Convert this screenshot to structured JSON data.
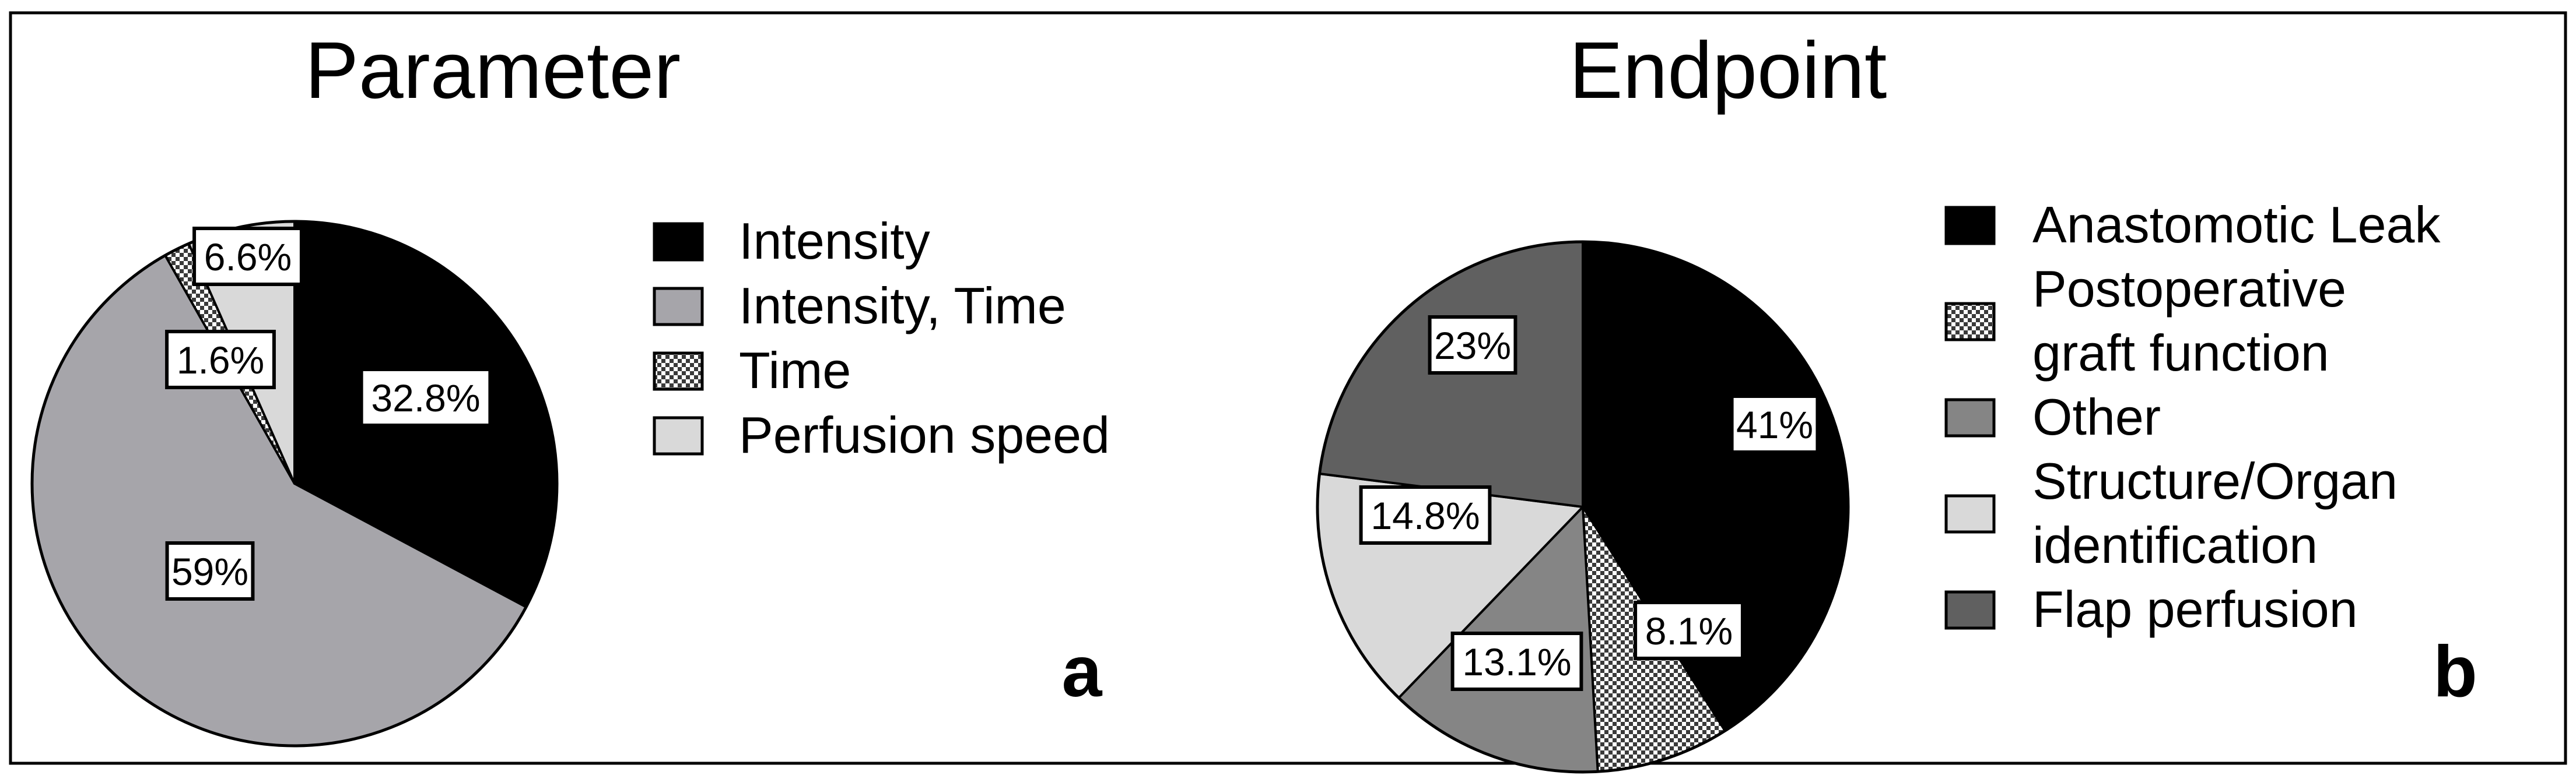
{
  "chart_data": [
    {
      "type": "pie",
      "title": "Parameter",
      "panel_letter": "a",
      "slices": [
        {
          "label": "Intensity",
          "value": 32.8,
          "display": "32.8%",
          "color": "#000000",
          "pattern": "solid"
        },
        {
          "label": "Intensity, Time",
          "value": 59,
          "display": "59%",
          "color": "#a6a5aa",
          "pattern": "solid"
        },
        {
          "label": "Time",
          "value": 1.6,
          "display": "1.6%",
          "color": "#555555",
          "pattern": "checker"
        },
        {
          "label": "Perfusion speed",
          "value": 6.6,
          "display": "6.6%",
          "color": "#d9d9d9",
          "pattern": "solid"
        }
      ],
      "legend": [
        {
          "text": [
            "Intensity"
          ],
          "color": "#000000",
          "pattern": "solid"
        },
        {
          "text": [
            "Intensity, Time"
          ],
          "color": "#a6a5aa",
          "pattern": "solid"
        },
        {
          "text": [
            "Time"
          ],
          "color": "#555555",
          "pattern": "checker"
        },
        {
          "text": [
            "Perfusion speed"
          ],
          "color": "#d9d9d9",
          "pattern": "solid"
        }
      ],
      "legend_placement": "right"
    },
    {
      "type": "pie",
      "title": "Endpoint",
      "panel_letter": "b",
      "slices": [
        {
          "label": "Anastomotic Leak",
          "value": 41,
          "display": "41%",
          "color": "#000000",
          "pattern": "solid"
        },
        {
          "label": "Postoperative graft function",
          "value": 8.1,
          "display": "8.1%",
          "color": "#555555",
          "pattern": "checker"
        },
        {
          "label": "Other",
          "value": 13.1,
          "display": "13.1%",
          "color": "#858585",
          "pattern": "solid"
        },
        {
          "label": "Structure/Organ identification",
          "value": 14.8,
          "display": "14.8%",
          "color": "#d9d9d9",
          "pattern": "solid"
        },
        {
          "label": "Flap perfusion",
          "value": 23,
          "display": "23%",
          "color": "#606060",
          "pattern": "solid"
        }
      ],
      "legend": [
        {
          "text": [
            "Anastomotic Leak"
          ],
          "color": "#000000",
          "pattern": "solid"
        },
        {
          "text": [
            "Postoperative",
            "graft function"
          ],
          "color": "#555555",
          "pattern": "checker"
        },
        {
          "text": [
            "Other"
          ],
          "color": "#858585",
          "pattern": "solid"
        },
        {
          "text": [
            "Structure/Organ",
            "identification"
          ],
          "color": "#d9d9d9",
          "pattern": "solid"
        },
        {
          "text": [
            "Flap perfusion"
          ],
          "color": "#606060",
          "pattern": "solid"
        }
      ],
      "legend_placement": "right"
    }
  ]
}
